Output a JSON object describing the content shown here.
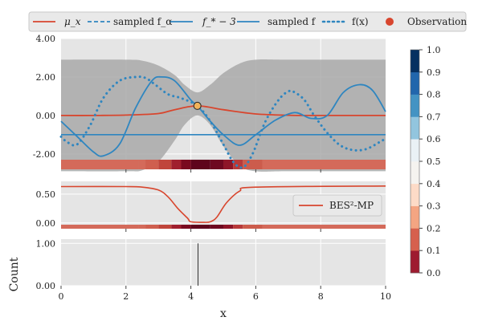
{
  "chart_data": [
    {
      "type": "line",
      "panel": "top",
      "x_range": [
        0,
        10
      ],
      "ylim": [
        -2.8,
        4.0
      ],
      "yticks": [
        "4.00",
        "2.00",
        "0.00",
        "-2.00"
      ],
      "grid": true,
      "legend_position": "top (outside, horizontal)",
      "legend": {
        "mu": "μ_x",
        "sampled_falpha": "sampled f_α",
        "fstar": "f_* − 3",
        "sampled_f": "sampled f",
        "fx": "f(x)",
        "obs": "Observation"
      },
      "observation": {
        "x": 4.2,
        "y": 0.5
      },
      "fstar_minus_3": -1.0,
      "mean": {
        "x": [
          0,
          1,
          2,
          3,
          3.5,
          4.2,
          5,
          6,
          7,
          8,
          10
        ],
        "y": [
          0,
          0,
          0.02,
          0.1,
          0.3,
          0.5,
          0.3,
          0.08,
          0.01,
          0,
          0
        ]
      },
      "band_upper": {
        "x": [
          0,
          2,
          2.5,
          3,
          3.5,
          3.8,
          4.2,
          4.6,
          5.0,
          5.5,
          6,
          7,
          10
        ],
        "y": [
          2.9,
          2.9,
          2.85,
          2.6,
          2.1,
          1.6,
          1.2,
          1.6,
          2.2,
          2.7,
          2.9,
          2.9,
          2.9
        ]
      },
      "band_lower": {
        "x": [
          0,
          2,
          2.5,
          3,
          3.5,
          3.8,
          4.2,
          4.6,
          5.0,
          5.5,
          6,
          7,
          10
        ],
        "y": [
          -2.9,
          -2.9,
          -2.85,
          -2.4,
          -1.3,
          -0.5,
          0.0,
          -0.5,
          -1.6,
          -2.6,
          -2.9,
          -2.9,
          -2.9
        ]
      },
      "sampled_f": {
        "x": [
          0,
          0.5,
          1.0,
          1.3,
          1.8,
          2.3,
          2.8,
          3.1,
          3.5,
          4.0,
          4.2,
          4.6,
          5.0,
          5.5,
          6.0,
          6.6,
          7.2,
          7.7,
          8.2,
          8.7,
          9.2,
          9.6,
          10
        ],
        "y": [
          -0.3,
          -1.1,
          -1.9,
          -2.1,
          -1.5,
          0.4,
          1.8,
          2.0,
          1.8,
          0.8,
          0.5,
          -0.3,
          -1.0,
          -1.55,
          -1.0,
          -0.25,
          0.15,
          -0.15,
          0.0,
          1.2,
          1.6,
          1.3,
          0.2
        ]
      },
      "f_x": {
        "x": [
          0,
          0.2,
          0.5,
          0.9,
          1.3,
          1.8,
          2.3,
          2.6,
          2.9,
          3.3,
          3.7,
          4.2,
          4.6,
          5.0,
          5.3,
          5.6,
          5.9,
          6.3,
          6.7,
          7.0,
          7.2,
          7.5,
          7.8,
          8.2,
          8.6,
          9.0,
          9.4,
          9.8,
          10
        ],
        "y": [
          -1.1,
          -1.4,
          -1.5,
          -0.5,
          0.9,
          1.8,
          2.0,
          1.95,
          1.6,
          1.1,
          0.9,
          0.5,
          -0.3,
          -1.5,
          -2.4,
          -2.7,
          -2.0,
          -0.3,
          0.8,
          1.25,
          1.2,
          0.8,
          0.0,
          -0.9,
          -1.55,
          -1.8,
          -1.75,
          -1.4,
          -1.2
        ]
      },
      "strip": {
        "colors": [
          "#d46a5a",
          "#d46a5a",
          "#d46a5a",
          "#cf5f4f",
          "#c0453b",
          "#a01f2e",
          "#7a0a1f",
          "#5e041c",
          "#6e0820",
          "#8e1528",
          "#b83a3a",
          "#cc5c4c",
          "#d46a5a",
          "#d46a5a"
        ],
        "x_edges": [
          0,
          2.4,
          2.4,
          2.6,
          3.0,
          3.4,
          3.7,
          4.0,
          4.6,
          5.0,
          5.3,
          5.6,
          6.2,
          10
        ]
      }
    },
    {
      "type": "line",
      "panel": "middle",
      "x_range": [
        0,
        10
      ],
      "ylim": [
        -0.1,
        0.72
      ],
      "yticks": [
        "0.50",
        "0.00"
      ],
      "legend_position": "center-right",
      "legend": {
        "bes": "BES²-MP"
      },
      "bes_mp": {
        "x": [
          0,
          2,
          2.5,
          3.0,
          3.3,
          3.6,
          3.9,
          4.0,
          4.4,
          4.6,
          4.8,
          5.1,
          5.5,
          6.0,
          10
        ],
        "y": [
          0.63,
          0.63,
          0.62,
          0.57,
          0.45,
          0.25,
          0.08,
          0.02,
          0.01,
          0.02,
          0.1,
          0.35,
          0.55,
          0.62,
          0.64
        ]
      }
    },
    {
      "type": "histogram",
      "panel": "bottom",
      "x_range": [
        0,
        10
      ],
      "ylim": [
        0,
        1.1
      ],
      "yticks": [
        "1.00",
        "0.00"
      ],
      "ylabel": "Count",
      "xlabel": "x",
      "xticks": [
        "0",
        "2",
        "4",
        "6",
        "8",
        "10"
      ],
      "bar_x": 4.22,
      "bar_value": 1.0
    },
    {
      "type": "colorbar",
      "ticks": [
        "1.0",
        "0.9",
        "0.8",
        "0.7",
        "0.6",
        "0.5",
        "0.4",
        "0.3",
        "0.2",
        "0.1",
        "0.0"
      ],
      "bin_colors": [
        "#9e1b30",
        "#d6604d",
        "#f4a582",
        "#fddbc7",
        "#f5f3ef",
        "#eaf1f5",
        "#92c5de",
        "#4393c3",
        "#2166ac",
        "#053061"
      ]
    }
  ],
  "colors": {
    "red": "#d8462e",
    "blue": "#2f86c0",
    "band": "#a9a9a9",
    "panel_bg": "#e5e5e5",
    "obs_fill": "#f1b35b"
  }
}
